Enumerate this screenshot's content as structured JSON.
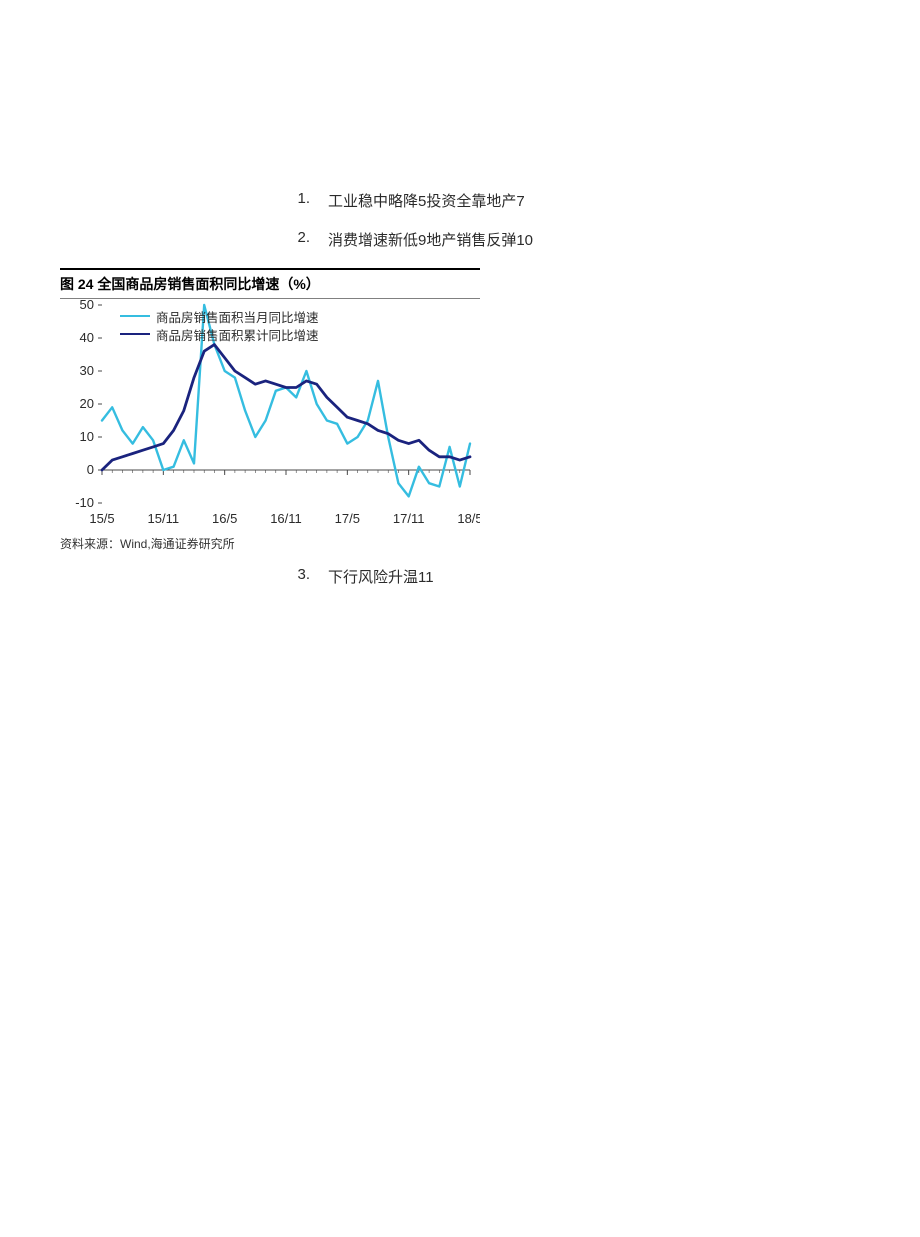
{
  "toc": {
    "items": [
      {
        "num": "1.",
        "text": "工业稳中略降5投资全靠地产7"
      },
      {
        "num": "2.",
        "text": "消费增速新低9地产销售反弹10"
      }
    ],
    "after": {
      "num": "3.",
      "text": "下行风险升温11"
    }
  },
  "figure": {
    "title": "图 24 全国商品房销售面积同比增速（%）",
    "source": "资料来源：Wind,海通证券研究所",
    "legend": [
      {
        "label": "商品房销售面积当月同比增速",
        "color": "#35bde0"
      },
      {
        "label": "商品房销售面积累计同比增速",
        "color": "#1a237e"
      }
    ],
    "chart": {
      "type": "line",
      "background_color": "#ffffff",
      "axis_color": "#4a4a4a",
      "tick_color": "#4a4a4a",
      "tick_fontsize": 13,
      "tick_text_color": "#2b2b2b",
      "line_width_main": 2.8,
      "line_width_alt": 2.4,
      "ylim": [
        -10,
        50
      ],
      "ytick_step": 10,
      "y_ticks": [
        -10,
        0,
        10,
        20,
        30,
        40,
        50
      ],
      "x_categories": [
        "15/5",
        "15/11",
        "16/5",
        "16/11",
        "17/5",
        "17/11",
        "18/5"
      ],
      "x_step_months": 1,
      "n_points": 37,
      "series": [
        {
          "name": "monthly_yoy",
          "color": "#35bde0",
          "width": 2.4,
          "values": [
            15,
            19,
            12,
            8,
            13,
            9,
            0,
            1,
            9,
            2,
            50,
            38,
            30,
            28,
            18,
            10,
            15,
            24,
            25,
            22,
            30,
            20,
            15,
            14,
            8,
            10,
            15,
            27,
            10,
            -4,
            -8,
            1,
            -4,
            -5,
            7,
            -5,
            8
          ]
        },
        {
          "name": "cumulative_yoy",
          "color": "#1a237e",
          "width": 2.8,
          "values": [
            0,
            3,
            4,
            5,
            6,
            7,
            8,
            12,
            18,
            28,
            36,
            38,
            34,
            30,
            28,
            26,
            27,
            26,
            25,
            25,
            27,
            26,
            22,
            19,
            16,
            15,
            14,
            12,
            11,
            9,
            8,
            9,
            6,
            4,
            4,
            3,
            4
          ]
        }
      ]
    }
  }
}
